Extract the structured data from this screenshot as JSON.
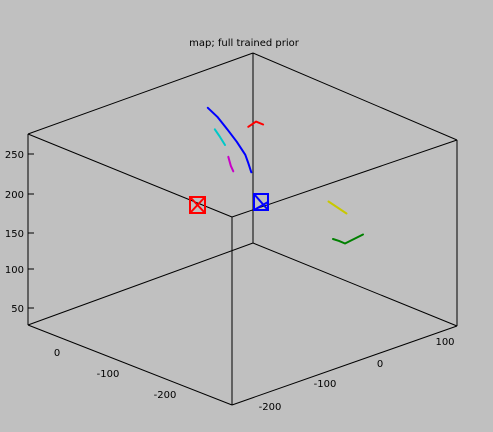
{
  "chart_data": {
    "type": "line",
    "projection": "3d",
    "title": "map; full trained prior",
    "xlabel": "",
    "ylabel": "",
    "zlabel": "",
    "x_ticks": [
      "100",
      "0",
      "-100",
      "-200"
    ],
    "y_ticks": [
      "0",
      "-100",
      "-200"
    ],
    "z_ticks": [
      "250",
      "200",
      "150",
      "100",
      "50"
    ],
    "box": true,
    "grid": false,
    "legend": "none",
    "series": [
      {
        "color": "#0000ff",
        "points": [
          [
            -40,
            -5,
            195
          ],
          [
            -30,
            -8,
            185
          ],
          [
            -20,
            -12,
            170
          ],
          [
            -10,
            -15,
            155
          ],
          [
            0,
            -15,
            140
          ],
          [
            5,
            -12,
            130
          ],
          [
            10,
            -8,
            120
          ]
        ]
      },
      {
        "color": "#ff0000",
        "points": [
          [
            -15,
            -60,
            165
          ],
          [
            -10,
            -70,
            172
          ],
          [
            -5,
            -78,
            168
          ]
        ]
      },
      {
        "color": "#00c8c8",
        "points": [
          [
            -40,
            -25,
            160
          ],
          [
            -35,
            -28,
            150
          ],
          [
            -30,
            -30,
            140
          ]
        ]
      },
      {
        "color": "#c800c8",
        "points": [
          [
            -10,
            -5,
            115
          ],
          [
            -15,
            -10,
            120
          ],
          [
            -20,
            -15,
            130
          ]
        ]
      },
      {
        "color": "#008000",
        "points": [
          [
            130,
            50,
            80
          ],
          [
            135,
            45,
            78
          ],
          [
            140,
            40,
            75
          ],
          [
            145,
            35,
            80
          ],
          [
            150,
            30,
            85
          ],
          [
            155,
            25,
            90
          ]
        ]
      },
      {
        "color": "#c8c800",
        "points": [
          [
            100,
            -10,
            110
          ],
          [
            105,
            -15,
            105
          ],
          [
            110,
            -20,
            100
          ],
          [
            115,
            -25,
            95
          ]
        ]
      }
    ],
    "cameras": [
      {
        "color": "#ff0000"
      },
      {
        "color": "#0000ff"
      }
    ]
  }
}
